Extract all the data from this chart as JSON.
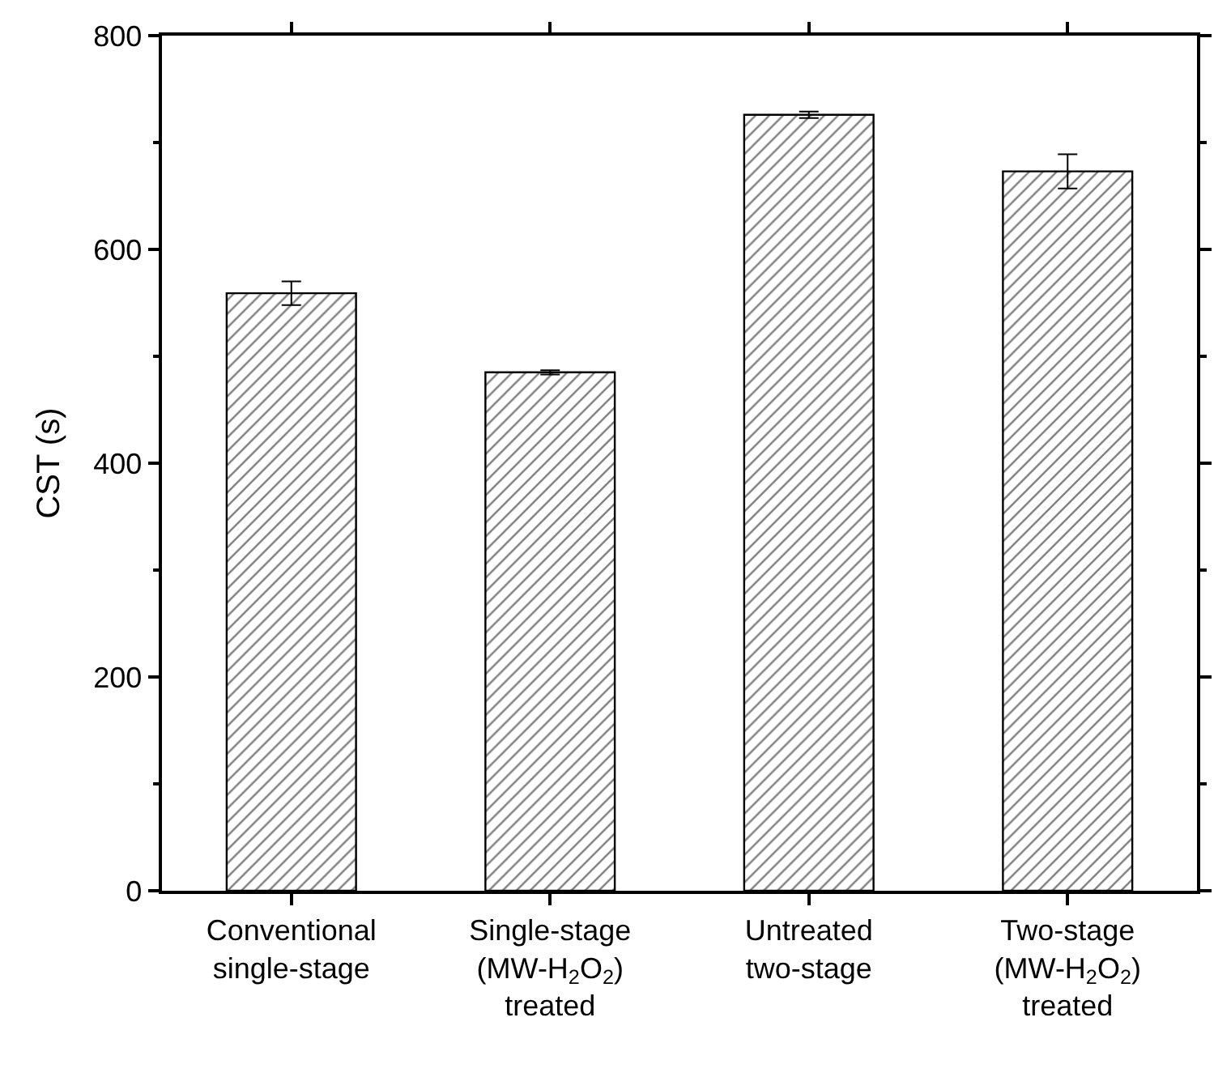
{
  "chart_data": {
    "type": "bar",
    "ylabel": "CST (s)",
    "categories": [
      "Conventional\nsingle-stage",
      "Single-stage\n(MW-H$_{2}$O$_{2}$)\ntreated",
      "Untreated\ntwo-stage",
      "Two-stage\n(MW-H$_{2}$O$_{2}$)\ntreated"
    ],
    "values": [
      559,
      485,
      726,
      673
    ],
    "errors": [
      11,
      2,
      3,
      16
    ],
    "ylim": [
      0,
      800
    ],
    "yticks": [
      0,
      200,
      400,
      600,
      800
    ]
  }
}
